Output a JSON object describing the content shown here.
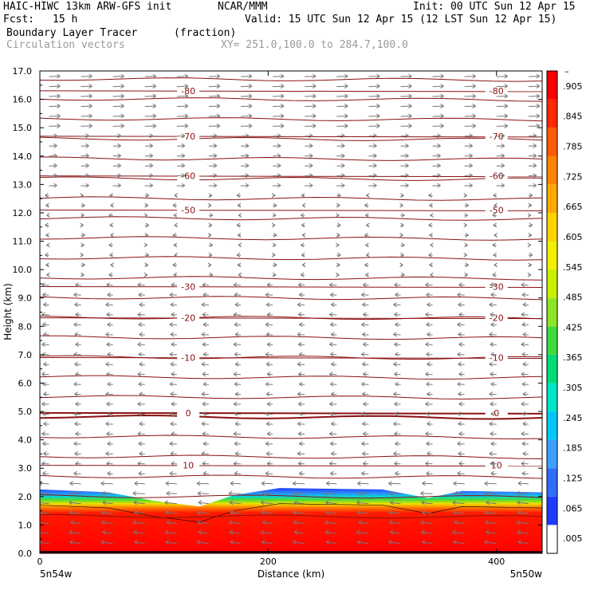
{
  "header": {
    "model": "HAIC-HIWC 13km ARW-GFS init",
    "center": "NCAR/MMM",
    "init": "Init: 00 UTC Sun 12 Apr 15",
    "fcst_label": "Fcst:",
    "fcst_value": "15 h",
    "valid": "Valid: 15 UTC Sun 12 Apr 15 (12 LST Sun 12 Apr 15)",
    "field": "Boundary Layer Tracer",
    "field_units": "(fraction)",
    "overlay": "Circulation vectors",
    "xy": "XY= 251.0,100.0 to 284.7,100.0"
  },
  "chart_data": {
    "type": "heatmap",
    "xlabel": "Distance (km)",
    "ylabel": "Height (km)",
    "xlim": [
      0,
      440
    ],
    "ylim": [
      0,
      17
    ],
    "x_ticks": [
      "0",
      "200",
      "400"
    ],
    "y_ticks": [
      "0.0",
      "1.0",
      "2.0",
      "3.0",
      "4.0",
      "5.0",
      "6.0",
      "7.0",
      "8.0",
      "9.0",
      "10.0",
      "11.0",
      "12.0",
      "13.0",
      "14.0",
      "15.0",
      "16.0",
      "17.0"
    ],
    "x_end_labels": {
      "left": "5n54w",
      "right": "5n50w"
    },
    "colorbar": {
      "labels": [
        ".005",
        ".065",
        ".125",
        ".185",
        ".245",
        ".305",
        ".365",
        ".425",
        ".485",
        ".545",
        ".605",
        ".665",
        ".725",
        ".785",
        ".845",
        ".905"
      ],
      "top_mark": "–",
      "colors": [
        "#ffffff",
        "#1e3cff",
        "#2d6eff",
        "#3ca0ff",
        "#00c8ff",
        "#00e6c8",
        "#00dc78",
        "#3cdc3c",
        "#8ce628",
        "#c8f000",
        "#f0f000",
        "#ffd200",
        "#ffaa00",
        "#ff8200",
        "#ff5a00",
        "#ff2800",
        "#ff0000"
      ]
    },
    "temperature_contours": [
      {
        "label": "10",
        "height_km": 3.1
      },
      {
        "label": "0",
        "height_km": 4.95
      },
      {
        "label": "-10",
        "height_km": 6.9
      },
      {
        "label": "-20",
        "height_km": 8.3
      },
      {
        "label": "-30",
        "height_km": 9.4
      },
      {
        "label": "-50",
        "height_km": 12.1
      },
      {
        "label": "-60",
        "height_km": 13.3
      },
      {
        "label": "-70",
        "height_km": 14.7
      },
      {
        "label": "-80",
        "height_km": 16.3
      }
    ],
    "boundary_layer_top_km": [
      {
        "x": 0,
        "top": 2.25
      },
      {
        "x": 60,
        "top": 2.15
      },
      {
        "x": 100,
        "top": 1.85
      },
      {
        "x": 140,
        "top": 1.65
      },
      {
        "x": 170,
        "top": 2.05
      },
      {
        "x": 210,
        "top": 2.3
      },
      {
        "x": 300,
        "top": 2.25
      },
      {
        "x": 340,
        "top": 1.95
      },
      {
        "x": 370,
        "top": 2.2
      },
      {
        "x": 440,
        "top": 2.15
      }
    ],
    "wind_bands": [
      {
        "from_km": 15,
        "to_km": 17,
        "direction": "east"
      },
      {
        "from_km": 12.8,
        "to_km": 15,
        "direction": "east"
      },
      {
        "from_km": 9.5,
        "to_km": 12.8,
        "direction": "weak"
      },
      {
        "from_km": 0,
        "to_km": 9.5,
        "direction": "west"
      }
    ]
  }
}
